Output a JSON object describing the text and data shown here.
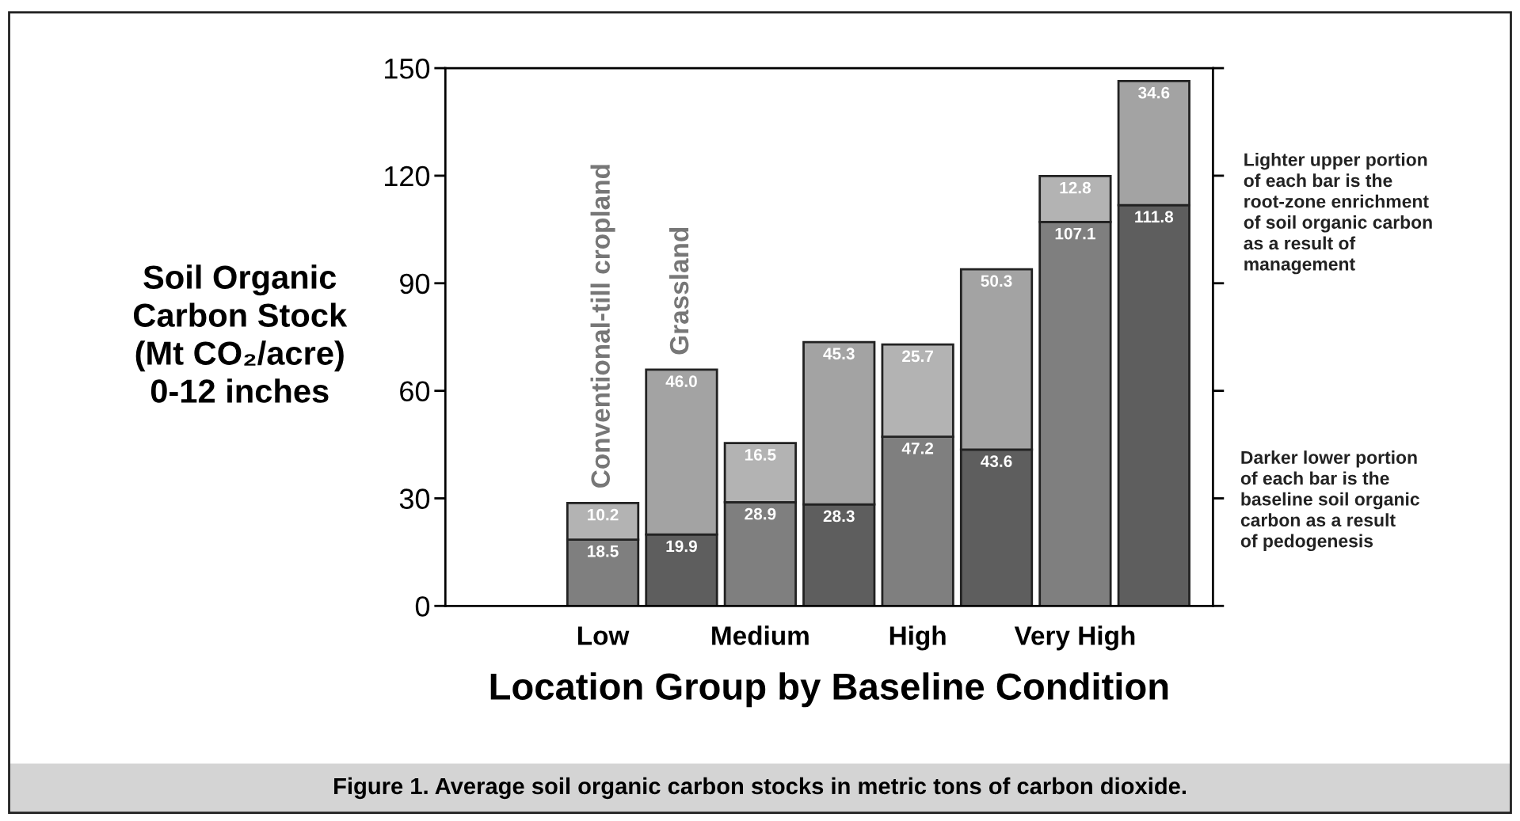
{
  "chart_data": {
    "type": "bar",
    "stacked": true,
    "xlabel": "Location Group by Baseline Condition",
    "ylabel": "Soil Organic\nCarbon Stock\n(Mt CO₂/acre)\n0-12 inches",
    "categories": [
      "Low",
      null,
      "Medium",
      null,
      "High",
      null,
      "Very High",
      null
    ],
    "series": [
      {
        "colors": [
          "#7f7f7f",
          "#5e5e5e",
          "#7f7f7f",
          "#5e5e5e",
          "#7f7f7f",
          "#5e5e5e",
          "#7f7f7f",
          "#5e5e5e"
        ],
        "values": [
          18.5,
          19.9,
          28.9,
          28.3,
          47.2,
          43.6,
          107.1,
          111.8
        ],
        "value_labels": [
          "18.5",
          "19.9",
          "28.9",
          "28.3",
          "47.2",
          "43.6",
          "107.1",
          "111.8"
        ]
      },
      {
        "colors": [
          "#b3b3b3",
          "#a3a3a3",
          "#b3b3b3",
          "#a3a3a3",
          "#b3b3b3",
          "#a3a3a3",
          "#b3b3b3",
          "#a3a3a3"
        ],
        "values": [
          10.2,
          46.0,
          16.5,
          45.3,
          25.7,
          50.3,
          12.8,
          34.6
        ],
        "value_labels": [
          "10.2",
          "46.0",
          "16.5",
          "45.3",
          "25.7",
          "50.3",
          "12.8",
          "34.6"
        ]
      }
    ],
    "ylim": [
      0,
      150
    ],
    "yticks": [
      0,
      30,
      60,
      90,
      120,
      150
    ],
    "grid": false,
    "legend": false,
    "annotations": [
      "Conventional-till cropland",
      "Grassland",
      "Lighter upper portion\nof each bar is the\nroot-zone enrichment\nof soil organic carbon\nas a result of\nmanagement",
      "Darker lower portion\nof each bar is the\nbaseline soil organic\ncarbon as a result\nof pedogenesis",
      "Figure 1. Average soil organic carbon stocks in metric tons of carbon dioxide."
    ]
  }
}
